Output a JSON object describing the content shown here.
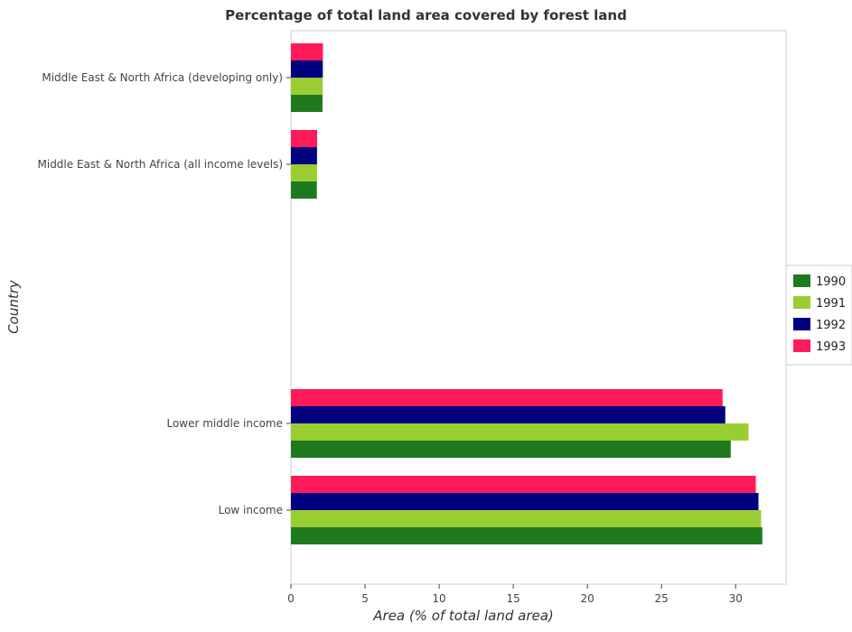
{
  "chart_data": {
    "type": "bar",
    "orientation": "horizontal",
    "title": "Percentage of total land area covered by forest land",
    "xlabel": "Area (% of total land area)",
    "ylabel": "Country",
    "categories": [
      "Low income",
      "Lower middle income",
      "Middle East & North Africa (all income levels)",
      "Middle East & North Africa (developing only)"
    ],
    "series": [
      {
        "name": "1990",
        "color": "#1f7a1f",
        "values": [
          31.8,
          29.67,
          1.75,
          2.13
        ]
      },
      {
        "name": "1991",
        "color": "#9acd32",
        "values": [
          31.72,
          30.87,
          1.76,
          2.14
        ]
      },
      {
        "name": "1992",
        "color": "#000080",
        "values": [
          31.54,
          29.3,
          1.76,
          2.15
        ]
      },
      {
        "name": "1993",
        "color": "#ff1a5a",
        "values": [
          31.36,
          29.12,
          1.77,
          2.16
        ]
      }
    ],
    "xlim": [
      0,
      33.4
    ],
    "xticks": [
      0,
      5,
      10,
      15,
      20,
      25,
      30
    ],
    "legend_position": "right",
    "grid": false
  }
}
